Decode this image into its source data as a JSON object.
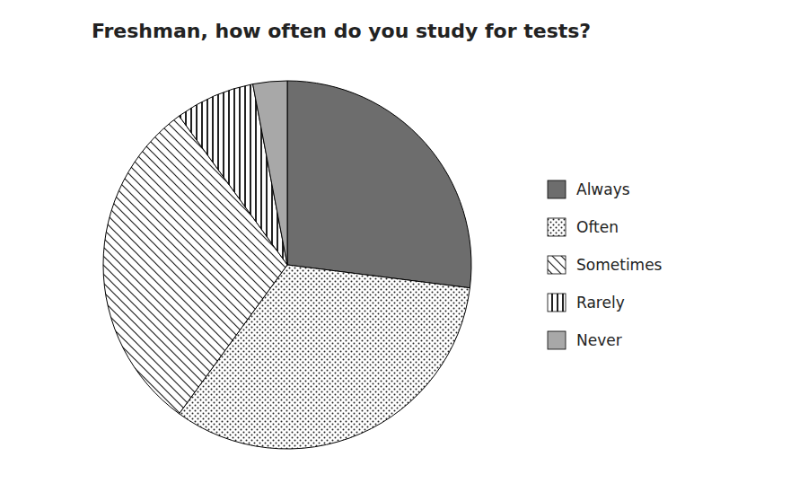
{
  "chart_data": {
    "type": "pie",
    "title": "Freshman, how often do you study for tests?",
    "categories": [
      "Always",
      "Often",
      "Sometimes",
      "Rarely",
      "Never"
    ],
    "values": [
      27,
      33,
      30,
      7,
      3
    ],
    "colors": [
      "#6d6d6d",
      "#ffffff",
      "#ffffff",
      "#ffffff",
      "#a8a8a8"
    ],
    "legend": "right"
  }
}
